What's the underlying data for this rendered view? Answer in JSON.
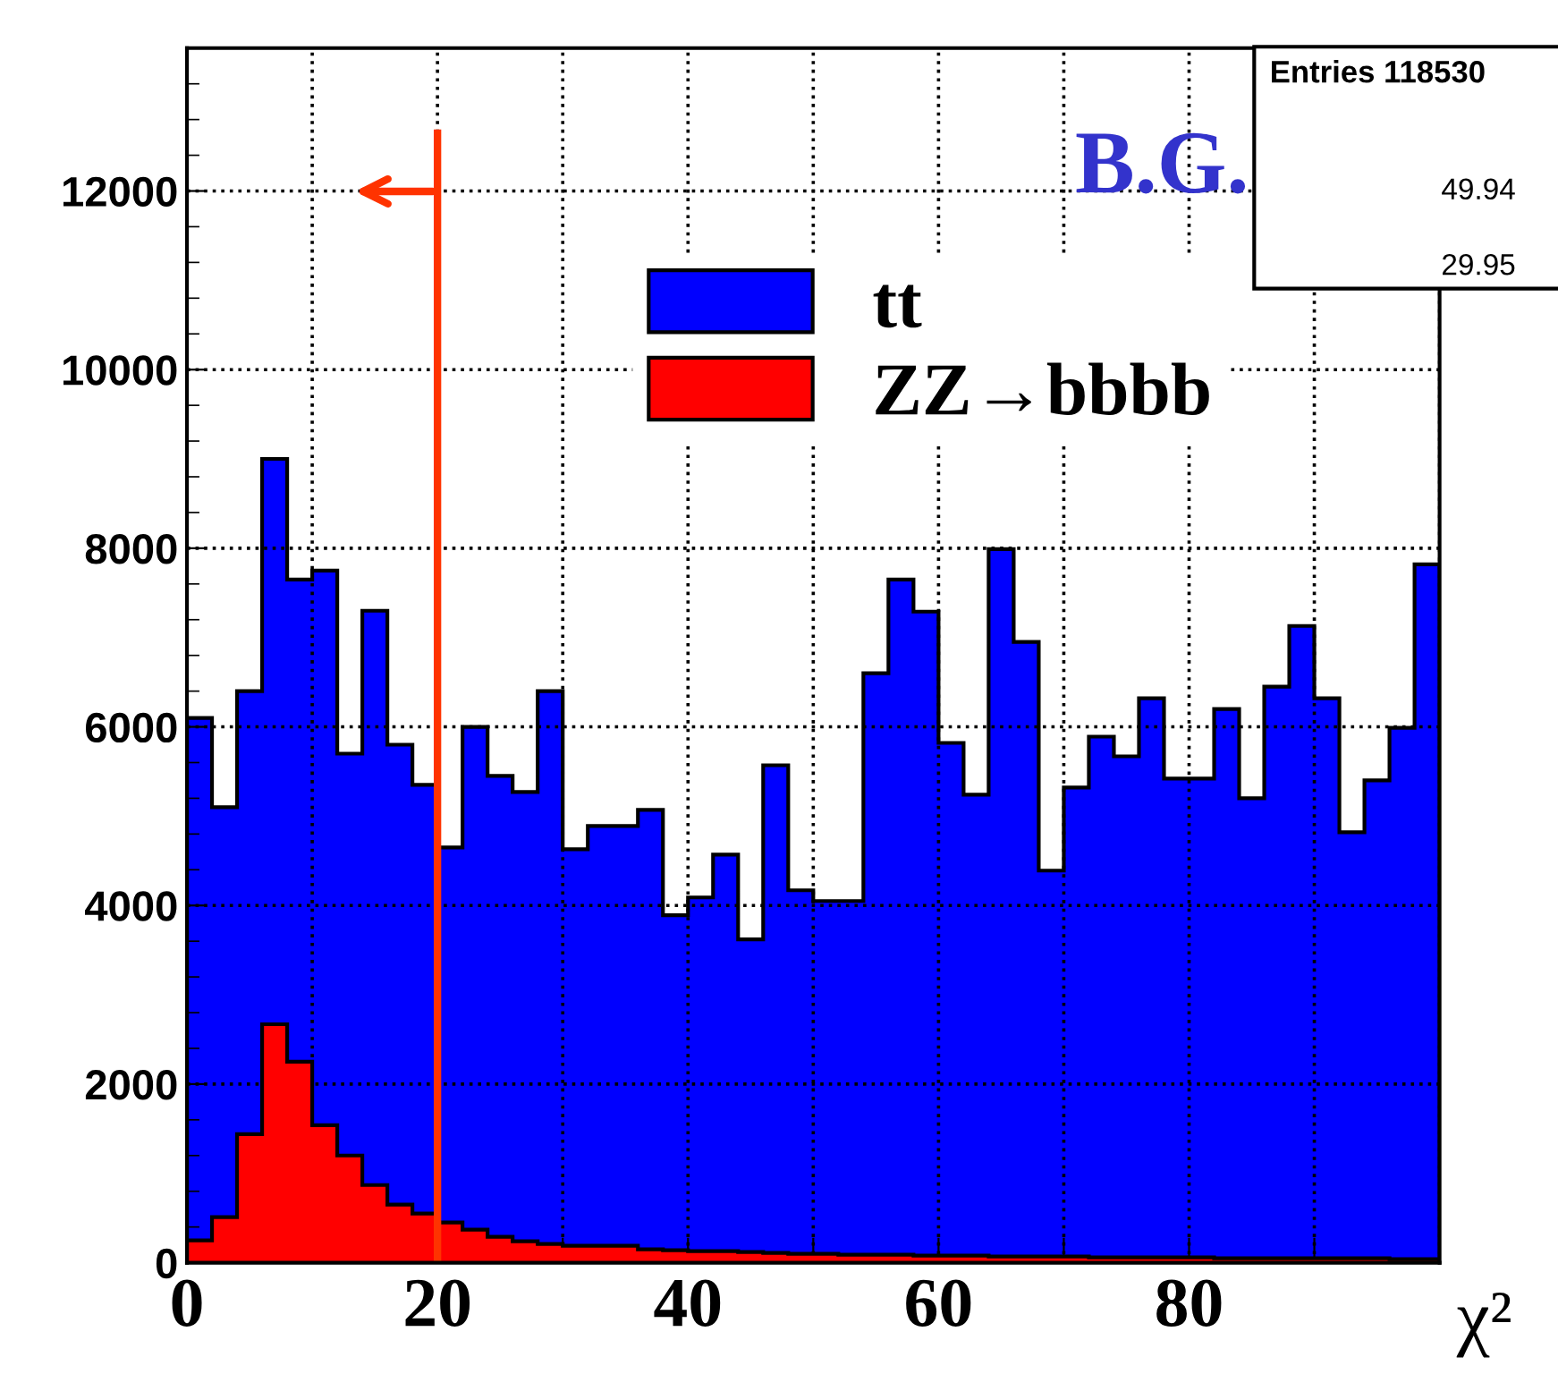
{
  "chart_data": {
    "type": "histogram",
    "xlabel": "χ²",
    "bins": [
      0,
      2,
      4,
      6,
      8,
      10,
      12,
      14,
      16,
      18,
      20,
      22,
      24,
      26,
      28,
      30,
      32,
      34,
      36,
      38,
      40,
      42,
      44,
      46,
      48,
      50,
      52,
      54,
      56,
      58,
      60,
      62,
      64,
      66,
      68,
      70,
      72,
      74,
      76,
      78,
      80,
      82,
      84,
      86,
      88,
      90,
      92,
      94,
      96,
      98,
      100
    ],
    "series": [
      {
        "name": "tt",
        "color": "#0000ff",
        "values": [
          6100,
          5100,
          6400,
          9000,
          7650,
          7750,
          5700,
          7300,
          5800,
          5350,
          4650,
          6000,
          5450,
          5270,
          6400,
          4630,
          4890,
          4890,
          5070,
          3890,
          4090,
          4570,
          3620,
          5570,
          4170,
          4050,
          4050,
          6600,
          7650,
          7290,
          5820,
          5240,
          7990,
          6950,
          4390,
          5320,
          5890,
          5670,
          6320,
          5420,
          5420,
          6200,
          5200,
          6450,
          7130,
          6320,
          4820,
          5400,
          5990,
          7820
        ]
      },
      {
        "name": "ZZ→bbbb",
        "color": "#ff0000",
        "values": [
          250,
          510,
          1440,
          2670,
          2250,
          1540,
          1200,
          870,
          650,
          550,
          450,
          370,
          290,
          240,
          210,
          190,
          190,
          190,
          150,
          140,
          130,
          130,
          120,
          110,
          100,
          100,
          90,
          90,
          90,
          80,
          80,
          80,
          70,
          70,
          70,
          70,
          60,
          60,
          60,
          60,
          60,
          50,
          50,
          50,
          50,
          50,
          50,
          50,
          40,
          40
        ]
      }
    ],
    "xlim": [
      0,
      100
    ],
    "ylim": [
      0,
      13600
    ],
    "xticks": [
      0,
      {
        "value": 10,
        "label": null
      },
      20,
      {
        "value": 30,
        "label": null
      },
      40,
      {
        "value": 50,
        "label": null
      },
      60,
      {
        "value": 70,
        "label": null
      },
      80,
      {
        "value": 90,
        "label": null
      },
      {
        "value": 100,
        "label": null
      }
    ],
    "yticks": [
      0,
      2000,
      4000,
      6000,
      8000,
      10000,
      12000
    ],
    "grid": true,
    "line_style": "dotted",
    "legend": "top right",
    "ref_lines": [
      {
        "axis": "x",
        "value": 20,
        "color": "#ff3300"
      }
    ],
    "annotations": [
      "B.G.",
      "Entries 118530",
      "49.94",
      "29.95"
    ]
  }
}
